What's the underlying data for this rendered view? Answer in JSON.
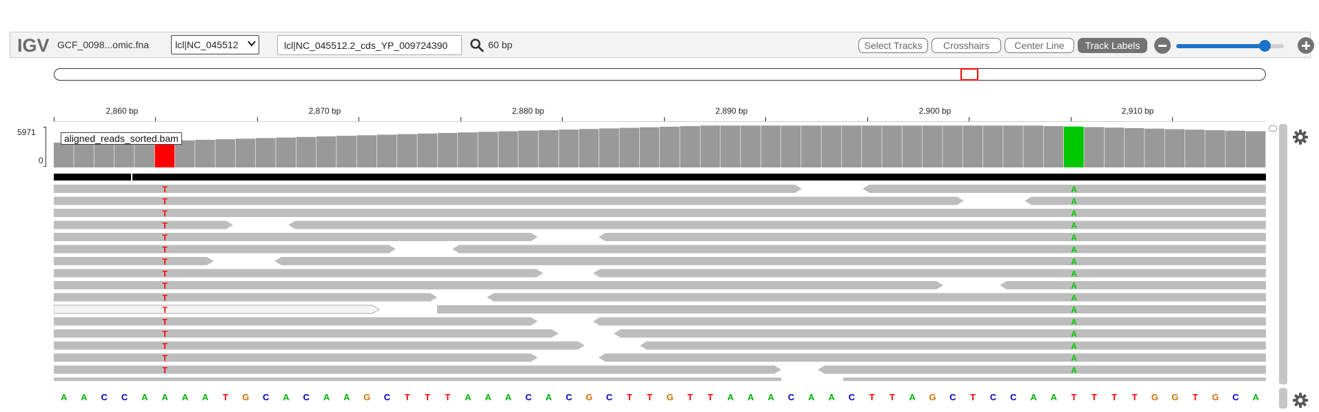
{
  "navbar": {
    "logo": "IGV",
    "genome": "GCF_0098...omic.fna",
    "chromosome": "lcl|NC_045512",
    "locus": "lcl|NC_045512.2_cds_YP_009724390",
    "window_size": "60 bp",
    "buttons": {
      "select_tracks": "Select Tracks",
      "crosshairs": "Crosshairs",
      "center_line": "Center Line",
      "track_labels": "Track Labels"
    },
    "zoom_level": 0.82
  },
  "ruler": {
    "ticks": [
      "2,860 bp",
      "2,870 bp",
      "2,880 bp",
      "2,890 bp",
      "2,900 bp",
      "2,910 bp"
    ]
  },
  "coverage": {
    "max_label": "5971",
    "min_label": "0",
    "mismatch_colors": {
      "T": "#ff0000",
      "A": "#00c800"
    }
  },
  "alignment_track": {
    "name": "aligned_reads_sorted.bam",
    "mismatch_base_1": "T",
    "mismatch_base_2": "A"
  },
  "sequence": {
    "bases": [
      "A",
      "A",
      "C",
      "C",
      "A",
      "A",
      "A",
      "A",
      "T",
      "G",
      "C",
      "A",
      "C",
      "A",
      "A",
      "G",
      "C",
      "T",
      "T",
      "T",
      "A",
      "A",
      "A",
      "C",
      "A",
      "C",
      "G",
      "C",
      "T",
      "T",
      "G",
      "T",
      "T",
      "A",
      "A",
      "A",
      "C",
      "A",
      "A",
      "C",
      "T",
      "T",
      "A",
      "G",
      "C",
      "T",
      "C",
      "C",
      "A",
      "A",
      "T",
      "T",
      "T",
      "T",
      "G",
      "G",
      "T",
      "G",
      "C",
      "A"
    ],
    "colors": {
      "A": "#00b400",
      "C": "#0000c8",
      "G": "#d17105",
      "T": "#ff0000"
    }
  },
  "icons": {
    "search": "search-icon",
    "zoom_out": "zoom-out-icon",
    "zoom_in": "zoom-in-icon",
    "settings": "gear-icon",
    "dropdown": "chevron-down-icon"
  }
}
